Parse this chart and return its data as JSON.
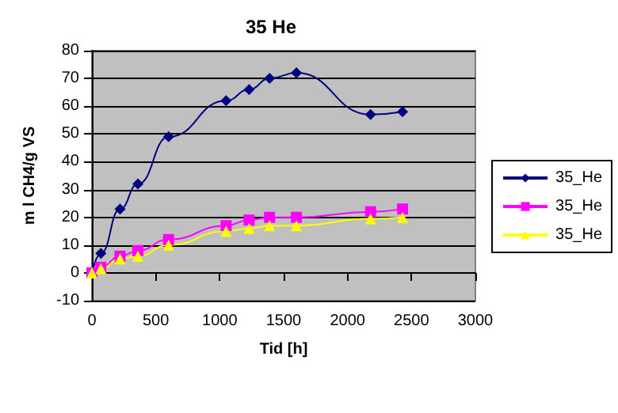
{
  "chart_data": {
    "type": "line",
    "title": "35 He",
    "xlabel": "Tid [h]",
    "ylabel": "m l CH4/g VS",
    "x": [
      0,
      70,
      220,
      360,
      600,
      1050,
      1230,
      1390,
      1600,
      2180,
      2430
    ],
    "series": [
      {
        "name": "35_He",
        "color": "#000080",
        "marker": "diamond",
        "values": [
          0,
          7,
          23,
          32,
          49,
          62,
          66,
          70,
          72,
          57,
          58
        ]
      },
      {
        "name": "35_He",
        "color": "#ff00ff",
        "marker": "square",
        "values": [
          0,
          2,
          6,
          8,
          12,
          17,
          19,
          20,
          20,
          22,
          23
        ]
      },
      {
        "name": "35_He",
        "color": "#ffff00",
        "marker": "triangle",
        "values": [
          0,
          1.5,
          5,
          6,
          10,
          15,
          16,
          17,
          17,
          19.5,
          20
        ]
      }
    ],
    "xlim": [
      0,
      3000
    ],
    "xticks": [
      0,
      500,
      1000,
      1500,
      2000,
      2500,
      3000
    ],
    "ylim": [
      -10,
      80
    ],
    "yticks": [
      -10,
      0,
      10,
      20,
      30,
      40,
      50,
      60,
      70,
      80
    ],
    "grid": "y",
    "legend": "right"
  }
}
